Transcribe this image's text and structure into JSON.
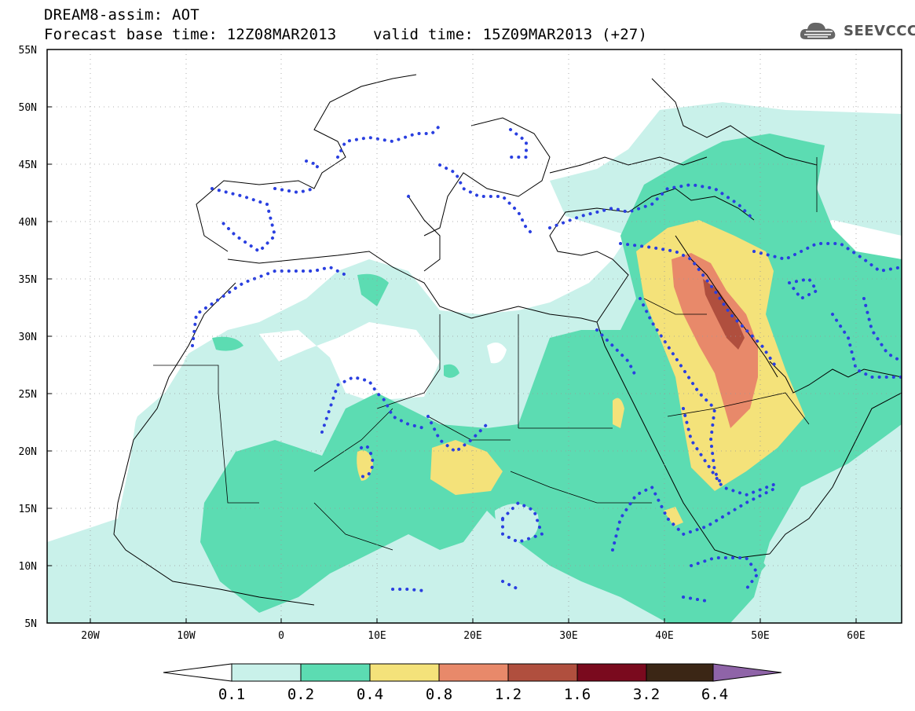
{
  "header": {
    "title_line1": "DREAM8-assim: AOT",
    "title_line2": "Forecast base time: 12Z08MAR2013    valid time: 15Z09MAR2013 (+27)",
    "logo_text": "SEEVCCC"
  },
  "map": {
    "lat_labels": [
      "55N",
      "50N",
      "45N",
      "40N",
      "35N",
      "30N",
      "25N",
      "20N",
      "15N",
      "10N",
      "5N"
    ],
    "lon_labels": [
      "20W",
      "10W",
      "0",
      "10E",
      "20E",
      "30E",
      "40E",
      "50E",
      "60E"
    ]
  },
  "legend": {
    "labels": [
      "0.1",
      "0.2",
      "0.4",
      "0.8",
      "1.2",
      "1.6",
      "3.2",
      "6.4"
    ],
    "colors": [
      "#ffffff",
      "#c9f1ea",
      "#5cdcb2",
      "#f4e27a",
      "#e8896a",
      "#b04f3e",
      "#7a0a1e",
      "#3b2615",
      "#8f64a8"
    ]
  },
  "colors": {
    "aot_0_1": "#c9f1ea",
    "aot_0_2": "#5cdcb2",
    "aot_0_4": "#f4e27a",
    "aot_0_8": "#e8896a",
    "aot_1_2": "#b04f3e",
    "dotted_contour": "#2a3fe0"
  }
}
